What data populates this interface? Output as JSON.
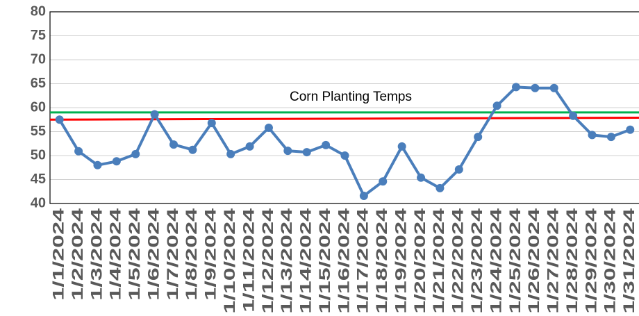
{
  "chart_data": {
    "type": "line",
    "annotation": "Corn Planting Temps",
    "categories": [
      "1/1/2024",
      "1/2/2024",
      "1/3/2024",
      "1/4/2024",
      "1/5/2024",
      "1/6/2024",
      "1/7/2024",
      "1/8/2024",
      "1/9/2024",
      "1/10/2024",
      "1/11/2024",
      "1/12/2024",
      "1/13/2024",
      "1/14/2024",
      "1/15/2024",
      "1/16/2024",
      "1/17/2024",
      "1/18/2024",
      "1/19/2024",
      "1/20/2024",
      "1/21/2024",
      "1/22/2024",
      "1/23/2024",
      "1/24/2024",
      "1/25/2024",
      "1/26/2024",
      "1/27/2024",
      "1/28/2024",
      "1/29/2024",
      "1/30/2024",
      "1/31/2024"
    ],
    "color": "#4a7ebb",
    "values": [
      57.5,
      50.9,
      48.0,
      48.8,
      50.3,
      58.6,
      52.3,
      51.2,
      56.8,
      50.3,
      51.9,
      55.8,
      51.0,
      50.7,
      52.2,
      50.0,
      41.6,
      44.6,
      51.9,
      45.4,
      43.2,
      47.1,
      53.9,
      60.4,
      64.3,
      64.1,
      64.1,
      58.3,
      54.3,
      53.9,
      55.4
    ],
    "reference_lines": [
      {
        "color": "#00b050",
        "values": [
          59.0,
          59.0
        ]
      },
      {
        "color": "#ff0000",
        "values": [
          57.5,
          57.9
        ]
      }
    ],
    "ylim": [
      40,
      80
    ],
    "yticks": [
      40,
      45,
      50,
      55,
      60,
      65,
      70,
      75,
      80
    ],
    "grid": true
  }
}
